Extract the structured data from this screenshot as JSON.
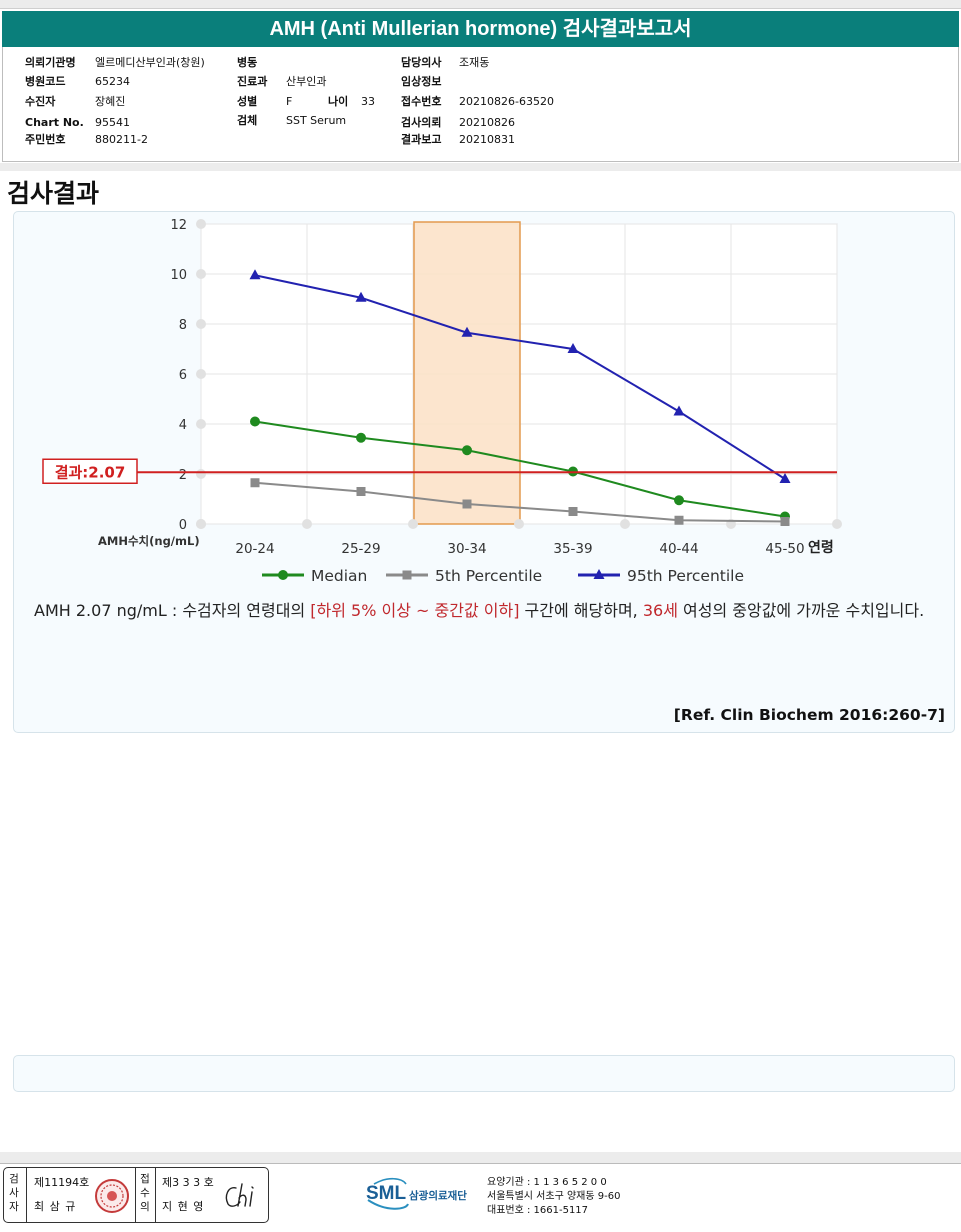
{
  "report_title": "AMH (Anti Mullerian hormone) 검사결과보고서",
  "info": {
    "col1": [
      {
        "label": "의뢰기관명",
        "value": "엘르메디산부인과(창원)"
      },
      {
        "label": "병원코드",
        "value": "65234"
      },
      {
        "label": "수진자",
        "value": "장혜진"
      },
      {
        "label": "Chart No.",
        "value": "95541"
      },
      {
        "label": "주민번호",
        "value": "880211-2"
      }
    ],
    "col2": [
      {
        "label": "병동",
        "value": ""
      },
      {
        "label": "진료과",
        "value": "산부인과"
      },
      {
        "label": "성별",
        "value": "F"
      },
      {
        "label": "검체",
        "value": "SST Serum"
      }
    ],
    "age": {
      "label": "나이",
      "value": "33"
    },
    "col3": [
      {
        "label": "담당의사",
        "value": "조재동"
      },
      {
        "label": "임상정보",
        "value": ""
      },
      {
        "label": "접수번호",
        "value": "20210826-63520"
      },
      {
        "label": "검사의뢰",
        "value": "20210826"
      },
      {
        "label": "결과보고",
        "value": "20210831"
      }
    ]
  },
  "section_title": "검사결과",
  "chart_data": {
    "type": "line",
    "categories": [
      "20-24",
      "25-29",
      "30-34",
      "35-39",
      "40-44",
      "45-50"
    ],
    "x_axis_suffix": "연령",
    "ylabel": "AMH수치(ng/mL)",
    "ylim": [
      0,
      12
    ],
    "yticks": [
      0,
      2,
      4,
      6,
      8,
      10,
      12
    ],
    "grid": true,
    "legend_position": "bottom",
    "highlight_category": "30-34",
    "reference_line": {
      "label": "결과:2.07",
      "value": 2.07
    },
    "series": [
      {
        "name": "Median",
        "marker": "circle",
        "color": "#1f8a1f",
        "values": [
          4.1,
          3.45,
          2.95,
          2.1,
          0.95,
          0.3
        ]
      },
      {
        "name": "5th Percentile",
        "marker": "square",
        "color": "#8a8a8a",
        "values": [
          1.65,
          1.3,
          0.8,
          0.5,
          0.15,
          0.1
        ]
      },
      {
        "name": "95th Percentile",
        "marker": "triangle",
        "color": "#2222b0",
        "values": [
          9.95,
          9.05,
          7.65,
          7.0,
          4.5,
          1.8
        ]
      }
    ]
  },
  "colors": {
    "title_bar": "#0a7f7b",
    "highlight_band": "#fbe0c6",
    "reference_line": "#d02020",
    "emphasis_text": "#c0282d"
  },
  "description": {
    "part1": "AMH  2.07 ng/mL : 수검자의 연령대의 ",
    "highlight1": "[하위 5% 이상 ~ 중간값 이하]",
    "part2": "  구간에 해당하며, ",
    "highlight2": "36세",
    "part3": " 여성의 중앙값에 가까운 수치입니다."
  },
  "reference": "[Ref. Clin Biochem 2016:260-7]",
  "footer": {
    "examiner_label": "검사자",
    "examiner_no": "제11194호",
    "examiner_name": "최 삼 규",
    "receiver_label": "접수의",
    "receiver_no": "제3 3 3 호",
    "receiver_name": "지 현 영",
    "signature": "Chi",
    "org_logo": "SML",
    "org_name": "삼광의료재단",
    "org_code": "요양기관 : 1 1 3 6 5 2 0 0",
    "org_address": "서울특별시 서초구 양재동 9-60",
    "org_phone": "대표번호 : 1661-5117"
  }
}
